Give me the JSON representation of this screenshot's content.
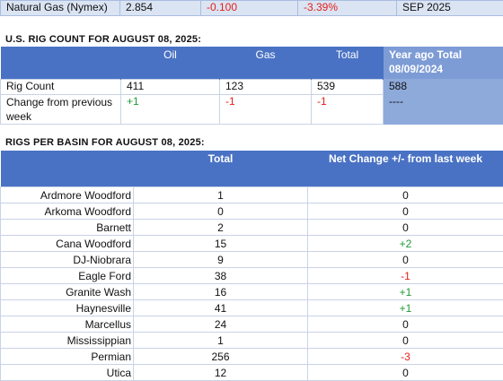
{
  "natural_gas": {
    "name": "Natural Gas (Nymex)",
    "price": "2.854",
    "change": "-0.100",
    "pct": "-3.39%",
    "contract": "SEP 2025"
  },
  "rig_section": {
    "title": "U.S. RIG COUNT FOR AUGUST 08, 2025:",
    "headers": {
      "oil": "Oil",
      "gas": "Gas",
      "total": "Total",
      "year_ago": "Year ago Total 08/09/2024"
    },
    "rows": [
      {
        "label": "Rig Count",
        "oil": "411",
        "gas": "123",
        "total": "539",
        "year_ago": "588"
      },
      {
        "label": "Change from previous week",
        "oil": "+1",
        "gas": "-1",
        "total": "-1",
        "year_ago": "----"
      }
    ]
  },
  "basin_section": {
    "title": "RIGS PER BASIN FOR AUGUST 08, 2025:",
    "headers": {
      "total": "Total",
      "change": "Net Change +/- from last week"
    },
    "rows": [
      {
        "name": "Ardmore Woodford",
        "total": "1",
        "change": "0"
      },
      {
        "name": "Arkoma Woodford",
        "total": "0",
        "change": "0"
      },
      {
        "name": "Barnett",
        "total": "2",
        "change": "0"
      },
      {
        "name": "Cana Woodford",
        "total": "15",
        "change": "+2"
      },
      {
        "name": "DJ-Niobrara",
        "total": "9",
        "change": "0"
      },
      {
        "name": "Eagle Ford",
        "total": "38",
        "change": "-1"
      },
      {
        "name": "Granite Wash",
        "total": "16",
        "change": "+1"
      },
      {
        "name": "Haynesville",
        "total": "41",
        "change": "+1"
      },
      {
        "name": "Marcellus",
        "total": "24",
        "change": "0"
      },
      {
        "name": "Mississippian",
        "total": "1",
        "change": "0"
      },
      {
        "name": "Permian",
        "total": "256",
        "change": "-3"
      },
      {
        "name": "Utica",
        "total": "12",
        "change": "0"
      }
    ]
  },
  "colors": {
    "header": "#4a72c4",
    "year_ago": "#8eaadb",
    "positive": "#1e9a3a",
    "negative": "#e3201b"
  }
}
